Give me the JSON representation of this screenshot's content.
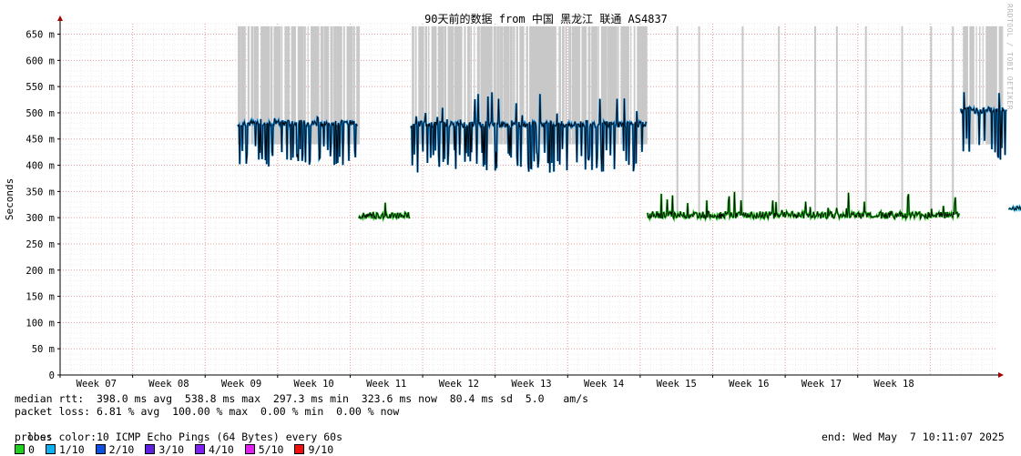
{
  "chart_data": {
    "type": "line",
    "title": "90天前的数据 from 中国 黑龙江 联通 AS4837",
    "ylabel": "Seconds",
    "ylim": [
      0,
      670
    ],
    "yticks": [
      {
        "v": 0,
        "label": "0"
      },
      {
        "v": 50,
        "label": "50 m"
      },
      {
        "v": 100,
        "label": "100 m"
      },
      {
        "v": 150,
        "label": "150 m"
      },
      {
        "v": 200,
        "label": "200 m"
      },
      {
        "v": 250,
        "label": "250 m"
      },
      {
        "v": 300,
        "label": "300 m"
      },
      {
        "v": 350,
        "label": "350 m"
      },
      {
        "v": 400,
        "label": "400 m"
      },
      {
        "v": 450,
        "label": "450 m"
      },
      {
        "v": 500,
        "label": "500 m"
      },
      {
        "v": 550,
        "label": "550 m"
      },
      {
        "v": 600,
        "label": "600 m"
      },
      {
        "v": 650,
        "label": "650 m"
      }
    ],
    "xlim": [
      6.5,
      19.4
    ],
    "weeks": [
      "Week 07",
      "Week 08",
      "Week 09",
      "Week 10",
      "Week 11",
      "Week 12",
      "Week 13",
      "Week 14",
      "Week 15",
      "Week 16",
      "Week 17",
      "Week 18"
    ],
    "segments": [
      {
        "x0": 8.95,
        "x1": 10.6,
        "base": 480,
        "dip": 395,
        "peak": 495,
        "color": "#0a7fd0"
      },
      {
        "x0": 10.62,
        "x1": 11.32,
        "base": 305,
        "dip": 298,
        "peak": 330,
        "color": "#22c01e"
      },
      {
        "x0": 11.33,
        "x1": 14.58,
        "base": 478,
        "dip": 385,
        "peak": 540,
        "color": "#0a7fd0"
      },
      {
        "x0": 14.6,
        "x1": 18.9,
        "base": 306,
        "dip": 298,
        "peak": 350,
        "color": "#22c01e"
      },
      {
        "x0": 18.92,
        "x1": 19.55,
        "base": 505,
        "dip": 410,
        "peak": 545,
        "color": "#0a7fd0"
      },
      {
        "x0": 19.58,
        "x1": 19.85,
        "base": 318,
        "dip": 315,
        "peak": 330,
        "color": "#1aa8d8"
      }
    ],
    "loss_bands": [
      [
        8.95,
        9.5
      ],
      [
        9.55,
        10.6
      ],
      [
        11.35,
        14.58
      ],
      [
        18.95,
        19.5
      ]
    ],
    "loss_spikes": [
      15.0,
      15.3,
      15.9,
      16.4,
      16.9,
      17.2,
      17.6,
      18.1,
      18.5,
      18.8
    ],
    "legend": {
      "median_rtt": "median rtt:  398.0 ms avg  538.8 ms max  297.3 ms min  323.6 ms now  80.4 ms sd  5.0   am/s",
      "packet_loss": "packet loss: 6.81 % avg  100.00 % max  0.00 % min  0.00 % now",
      "loss_color_label": "loss color:",
      "loss_colors": [
        {
          "label": "0",
          "color": "#20d020"
        },
        {
          "label": "1/10",
          "color": "#10b0f0"
        },
        {
          "label": "2/10",
          "color": "#1050e0"
        },
        {
          "label": "3/10",
          "color": "#6020e0"
        },
        {
          "label": "4/10",
          "color": "#8020f0"
        },
        {
          "label": "5/10",
          "color": "#e020f0"
        },
        {
          "label": "9/10",
          "color": "#f01010"
        }
      ],
      "probe": "probe:       10 ICMP Echo Pings (64 Bytes) every 60s",
      "end": "end: Wed May  7 10:11:07 2025"
    },
    "watermark": "RRDTOOL / TOBI OETIKER"
  }
}
